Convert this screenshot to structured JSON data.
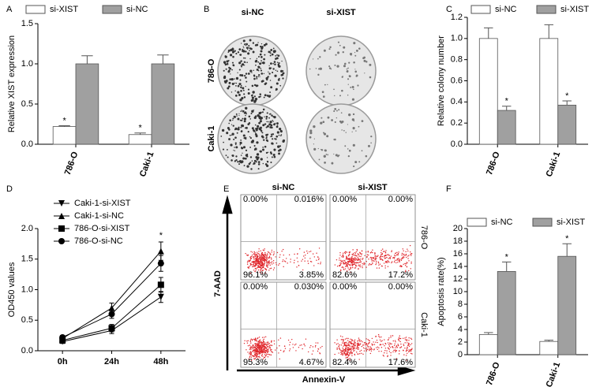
{
  "panel_labels": [
    "A",
    "B",
    "C",
    "D",
    "E",
    "F"
  ],
  "chart_data": [
    {
      "type": "bar",
      "ylabel": "Relative XIST expression",
      "categories": [
        "786-O",
        "Caki-1"
      ],
      "series": [
        {
          "name": "si-XIST",
          "color": "#ffffff",
          "values": [
            0.22,
            0.12
          ],
          "errors": [
            0.01,
            0.02
          ],
          "annotations": [
            "*",
            "*"
          ]
        },
        {
          "name": "si-NC",
          "color": "#a0a0a0",
          "values": [
            1.0,
            1.0
          ],
          "errors": [
            0.1,
            0.11
          ]
        }
      ],
      "ylim": [
        0,
        1.5
      ],
      "yticks": [
        {
          "value": 0,
          "label": "0.0"
        },
        {
          "value": 0.5,
          "label": "0.5"
        },
        {
          "value": 1,
          "label": "1.0"
        },
        {
          "value": 1.5,
          "label": "1.5"
        }
      ]
    },
    {
      "type": "bar",
      "ylabel": "Relative colony number",
      "categories": [
        "786-O",
        "Caki-1"
      ],
      "series": [
        {
          "name": "si-NC",
          "color": "#ffffff",
          "values": [
            1.0,
            1.0
          ],
          "errors": [
            0.1,
            0.13
          ]
        },
        {
          "name": "si-XIST",
          "color": "#a0a0a0",
          "values": [
            0.32,
            0.37
          ],
          "errors": [
            0.04,
            0.04
          ],
          "annotations": [
            "*",
            "*"
          ]
        }
      ],
      "ylim": [
        0,
        1.2
      ],
      "yticks": [
        {
          "value": 0,
          "label": "0.0"
        },
        {
          "value": 0.2,
          "label": "0.2"
        },
        {
          "value": 0.4,
          "label": "0.4"
        },
        {
          "value": 0.6,
          "label": "0.6"
        },
        {
          "value": 0.8,
          "label": "0.8"
        },
        {
          "value": 1,
          "label": "1.0"
        },
        {
          "value": 1.2,
          "label": "1.2"
        }
      ]
    },
    {
      "type": "line",
      "ylabel": "OD450 values",
      "categories": [
        "0h",
        "24h",
        "48h"
      ],
      "series": [
        {
          "name": "Caki-1-si-XIST",
          "marker": "triangle-down",
          "color": "#000000",
          "values": [
            0.15,
            0.33,
            0.88
          ],
          "errors": [
            0.03,
            0.05,
            0.09
          ]
        },
        {
          "name": "Caki-1-si-NC",
          "marker": "triangle-up",
          "color": "#000000",
          "values": [
            0.2,
            0.7,
            1.63
          ],
          "errors": [
            0.03,
            0.08,
            0.15
          ]
        },
        {
          "name": "786-O-si-XIST",
          "marker": "square",
          "color": "#000000",
          "values": [
            0.17,
            0.37,
            1.08
          ],
          "errors": [
            0.03,
            0.06,
            0.12
          ]
        },
        {
          "name": "786-O-si-NC",
          "marker": "circle",
          "color": "#000000",
          "values": [
            0.22,
            0.6,
            1.43
          ],
          "errors": [
            0.03,
            0.07,
            0.13
          ]
        }
      ],
      "annotations": [
        null,
        null,
        "*"
      ],
      "ylim": [
        0,
        2
      ],
      "yticks": [
        {
          "value": 0,
          "label": "0.0"
        },
        {
          "value": 0.5,
          "label": "0.5"
        },
        {
          "value": 1,
          "label": "1.0"
        },
        {
          "value": 1.5,
          "label": "1.5"
        },
        {
          "value": 2,
          "label": "2.0"
        }
      ]
    },
    {
      "type": "bar",
      "ylabel": "Apoptosis rate(%)",
      "categories": [
        "786-O",
        "Caki-1"
      ],
      "series": [
        {
          "name": "si-NC",
          "color": "#ffffff",
          "values": [
            3.2,
            2.1
          ],
          "errors": [
            0.3,
            0.2
          ]
        },
        {
          "name": "si-XIST",
          "color": "#a0a0a0",
          "values": [
            13.2,
            15.6
          ],
          "errors": [
            1.5,
            2.0
          ],
          "annotations": [
            "*",
            "*"
          ]
        }
      ],
      "ylim": [
        0,
        20
      ],
      "yticks": [
        0,
        2,
        4,
        6,
        8,
        10,
        12,
        14,
        16,
        18,
        20
      ]
    }
  ],
  "colony_panel": {
    "columns": [
      "si-NC",
      "si-XIST"
    ],
    "rows": [
      "786-O",
      "Caki-1"
    ]
  },
  "flow_panel": {
    "columns": [
      "si-NC",
      "si-XIST"
    ],
    "rows": [
      "786-O",
      "Caki-1"
    ],
    "y_axis_label": "7-AAD",
    "x_axis_label": "Annexin-V",
    "quadrants": [
      [
        "0.00%",
        "0.016%",
        "96.1%",
        "3.85%"
      ],
      [
        "0.00%",
        "0.00%",
        "82.6%",
        "17.2%"
      ],
      [
        "0.00%",
        "0.030%",
        "95.3%",
        "4.67%"
      ],
      [
        "0.00%",
        "0.00%",
        "82.4%",
        "17.6%"
      ]
    ]
  }
}
